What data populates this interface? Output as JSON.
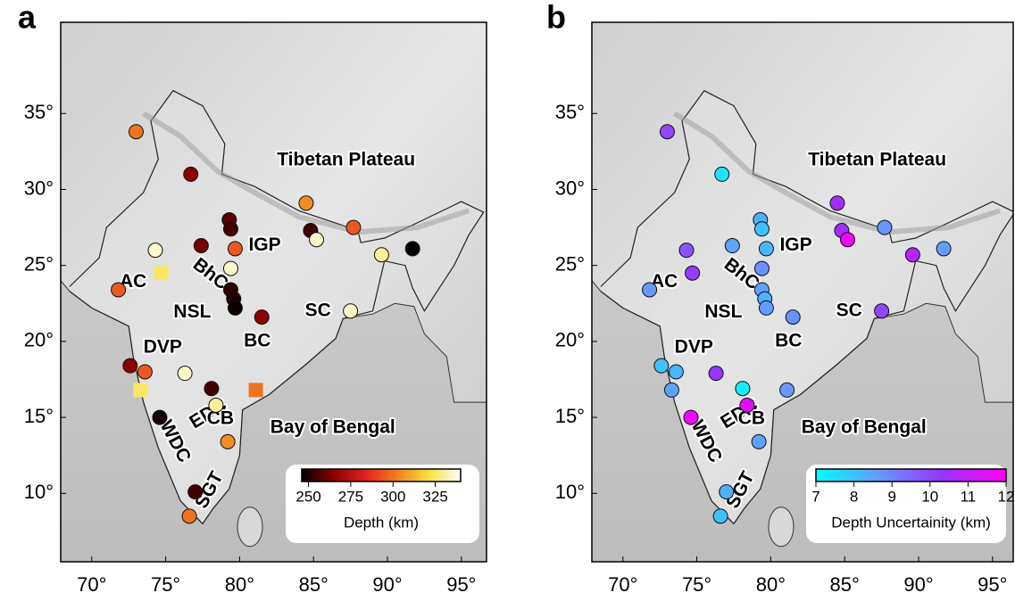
{
  "lon": [
    73.0,
    76.7,
    84.5,
    79.3,
    79.4,
    77.4,
    79.7,
    74.3,
    79.4,
    74.7,
    71.8,
    79.4,
    79.6,
    79.7,
    81.5,
    84.8,
    85.2,
    87.7,
    89.6,
    91.7,
    87.5,
    72.6,
    73.6,
    73.3,
    76.3,
    78.1,
    78.4,
    81.1,
    74.6,
    79.2,
    77.0,
    76.6
  ],
  "lat": [
    33.8,
    31.0,
    29.1,
    28.0,
    27.4,
    26.3,
    26.1,
    26.0,
    24.8,
    24.5,
    23.4,
    23.4,
    22.8,
    22.2,
    21.6,
    27.3,
    26.7,
    27.5,
    25.7,
    26.1,
    22.0,
    18.4,
    18.0,
    16.8,
    17.9,
    16.9,
    15.8,
    16.8,
    15.0,
    13.4,
    10.1,
    8.5
  ],
  "regions": [
    "Tibetan Plateau",
    "IGP",
    "BhC",
    "AC",
    "NSL",
    "SC",
    "DVP",
    "BC",
    "EDC",
    "CB",
    "Bay of Bengal",
    "WDC",
    "SGT"
  ],
  "panels": [
    {
      "label": "a",
      "xlim": [
        67.9,
        96.7
      ],
      "ylim": [
        5.5,
        41.0
      ],
      "xticks": [
        {
          "value": 70,
          "label": "70°"
        },
        {
          "value": 75,
          "label": "75°"
        },
        {
          "value": 80,
          "label": "80°"
        },
        {
          "value": 85,
          "label": "85°"
        },
        {
          "value": 90,
          "label": "90°"
        },
        {
          "value": 95,
          "label": "95°"
        }
      ],
      "yticks": [
        {
          "value": 10,
          "label": "10°"
        },
        {
          "value": 15,
          "label": "15°"
        },
        {
          "value": 20,
          "label": "20°"
        },
        {
          "value": 25,
          "label": "25°"
        },
        {
          "value": 30,
          "label": "30°"
        },
        {
          "value": 35,
          "label": "35°"
        }
      ],
      "values": [
        300,
        265,
        305,
        258,
        255,
        262,
        295,
        335,
        335,
        325,
        295,
        252,
        250,
        248,
        265,
        255,
        335,
        295,
        330,
        245,
        335,
        265,
        295,
        325,
        335,
        255,
        330,
        300,
        248,
        305,
        255,
        300
      ],
      "markers": [
        "circle",
        "circle",
        "circle",
        "circle",
        "circle",
        "circle",
        "circle",
        "circle",
        "circle",
        "square",
        "circle",
        "circle",
        "circle",
        "circle",
        "circle",
        "circle",
        "circle",
        "circle",
        "circle",
        "circle",
        "circle",
        "circle",
        "circle",
        "square",
        "circle",
        "circle",
        "circle",
        "square",
        "circle",
        "circle",
        "circle",
        "circle"
      ],
      "colorbar": {
        "title": "Depth (km)",
        "lim": [
          246,
          340
        ],
        "ticks": [
          250,
          275,
          300,
          325
        ],
        "colors": [
          "#000000",
          "#8b0000",
          "#e02020",
          "#f08020",
          "#f8e040",
          "#ffffff"
        ]
      }
    },
    {
      "label": "b",
      "xlim": [
        67.9,
        96.4
      ],
      "ylim": [
        5.5,
        41.0
      ],
      "xticks": [
        {
          "value": 70,
          "label": "70°"
        },
        {
          "value": 75,
          "label": "75°"
        },
        {
          "value": 80,
          "label": "80°"
        },
        {
          "value": 85,
          "label": "85°"
        },
        {
          "value": 90,
          "label": "90°"
        },
        {
          "value": 95,
          "label": "95°"
        }
      ],
      "yticks": [
        {
          "value": 10,
          "label": "10°"
        },
        {
          "value": 15,
          "label": "15°"
        },
        {
          "value": 20,
          "label": "20°"
        },
        {
          "value": 25,
          "label": "25°"
        },
        {
          "value": 30,
          "label": "30°"
        },
        {
          "value": 35,
          "label": "35°"
        }
      ],
      "values": [
        10.0,
        7.5,
        10.5,
        8.3,
        8.0,
        8.5,
        8.2,
        9.8,
        8.8,
        10.2,
        8.7,
        8.5,
        8.3,
        8.6,
        8.8,
        10.5,
        11.8,
        8.7,
        10.8,
        8.6,
        10.0,
        8.0,
        8.2,
        8.5,
        10.3,
        7.3,
        11.5,
        8.7,
        11.7,
        8.5,
        8.3,
        8.0
      ],
      "colorbar": {
        "title": "Depth Uncertainity (km)",
        "lim": [
          7,
          12
        ],
        "ticks": [
          7,
          8,
          9,
          10,
          11,
          12
        ],
        "colors": [
          "#00ffff",
          "#6699ff",
          "#9933ff",
          "#ff00ff"
        ]
      }
    }
  ]
}
